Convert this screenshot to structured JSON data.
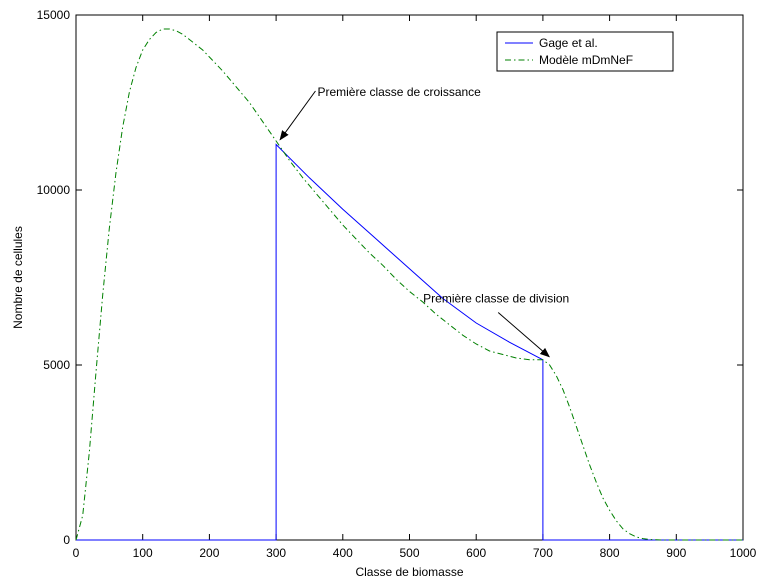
{
  "chart_data": {
    "type": "line",
    "xlabel": "Classe de biomasse",
    "ylabel": "Nombre de cellules",
    "xlim": [
      0,
      1000
    ],
    "ylim": [
      0,
      15000
    ],
    "xticks": [
      0,
      100,
      200,
      300,
      400,
      500,
      600,
      700,
      800,
      900,
      1000
    ],
    "yticks": [
      0,
      5000,
      10000,
      15000
    ],
    "grid": false,
    "legend_position": "top-right",
    "series": [
      {
        "name": "Gage et al.",
        "color": "#0000ff",
        "style": "solid",
        "x": [
          0,
          298,
          300,
          300,
          350,
          400,
          450,
          500,
          550,
          600,
          650,
          700,
          700,
          702,
          1000
        ],
        "y": [
          0,
          0,
          0,
          11300,
          10350,
          9450,
          8600,
          7750,
          6900,
          6200,
          5650,
          5150,
          0,
          0,
          0
        ]
      },
      {
        "name": "Modèle mDmNeF",
        "color": "#008000",
        "style": "dash-dot",
        "x": [
          0,
          10,
          20,
          30,
          40,
          50,
          60,
          70,
          80,
          90,
          100,
          110,
          120,
          130,
          140,
          150,
          160,
          170,
          180,
          190,
          200,
          220,
          240,
          260,
          280,
          300,
          320,
          340,
          360,
          380,
          400,
          420,
          440,
          460,
          480,
          500,
          520,
          540,
          560,
          580,
          600,
          620,
          640,
          660,
          680,
          700,
          710,
          720,
          730,
          740,
          750,
          760,
          770,
          780,
          790,
          800,
          810,
          820,
          830,
          840,
          850,
          860,
          870,
          880,
          890,
          900,
          920,
          950,
          1000
        ],
        "y": [
          0,
          700,
          2500,
          4800,
          7000,
          8900,
          10500,
          11800,
          12800,
          13500,
          14000,
          14300,
          14500,
          14600,
          14600,
          14550,
          14450,
          14300,
          14150,
          14000,
          13800,
          13400,
          12950,
          12500,
          11950,
          11400,
          10850,
          10350,
          9900,
          9450,
          9000,
          8600,
          8200,
          7850,
          7450,
          7100,
          6800,
          6450,
          6150,
          5850,
          5600,
          5400,
          5300,
          5200,
          5150,
          5150,
          5000,
          4700,
          4300,
          3800,
          3250,
          2700,
          2150,
          1650,
          1200,
          850,
          550,
          320,
          180,
          90,
          40,
          15,
          5,
          0,
          0,
          0,
          0,
          0,
          0
        ]
      }
    ],
    "annotations": [
      {
        "text": "Première classe de croissance",
        "point": [
          300,
          11350
        ],
        "label_at": [
          362,
          12800
        ]
      },
      {
        "text": "Première classe de division",
        "point": [
          705,
          5150
        ],
        "label_at": [
          630,
          6900
        ]
      }
    ]
  }
}
